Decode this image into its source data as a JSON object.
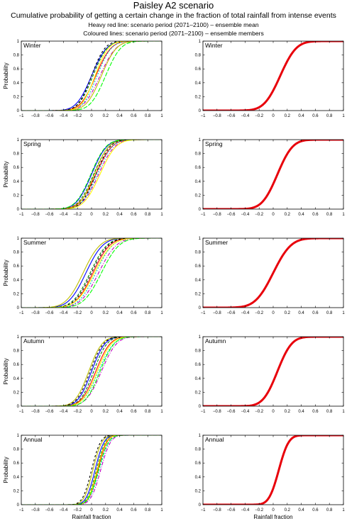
{
  "title": "Paisley A2 scenario",
  "subtitle": "Cumulative probability of getting a certain change in the fraction of total rainfall from intense events",
  "legend_lines": [
    "Heavy red line: scenario period (2071–2100) – ensemble mean",
    "Coloured lines: scenario period (2071–2100) – ensemble members"
  ],
  "colors": {
    "mean": "#e8000b",
    "members": [
      "#0000ff",
      "#007f00",
      "#ff0000",
      "#00bfbf",
      "#bf00bf",
      "#bfbf00",
      "#000000",
      "#ffff00",
      "#00ff00",
      "#ff00ff",
      "#7f007f"
    ]
  },
  "chart_data": [
    {
      "type": "line",
      "season": "Winter",
      "panel": "ensemble members",
      "ylabel": "Probability",
      "xlabel": "",
      "xlim": [
        -1,
        1
      ],
      "ylim": [
        0,
        1
      ],
      "xticks": [
        -1,
        -0.8,
        -0.6,
        -0.4,
        -0.2,
        0,
        0.2,
        0.4,
        0.6,
        0.8,
        1
      ],
      "yticks": [
        0,
        0.2,
        0.4,
        0.6,
        0.8,
        1
      ],
      "members": [
        {
          "median": 0.0,
          "spread": 0.17
        },
        {
          "median": 0.02,
          "spread": 0.16
        },
        {
          "median": 0.06,
          "spread": 0.17
        },
        {
          "median": 0.08,
          "spread": 0.16
        },
        {
          "median": 0.12,
          "spread": 0.18
        },
        {
          "median": 0.14,
          "spread": 0.17
        },
        {
          "median": 0.0,
          "spread": 0.15
        },
        {
          "median": 0.05,
          "spread": 0.15
        },
        {
          "median": 0.2,
          "spread": 0.17
        }
      ]
    },
    {
      "type": "line",
      "season": "Winter",
      "panel": "ensemble mean",
      "ylabel": "",
      "xlabel": "",
      "xlim": [
        -1,
        1
      ],
      "ylim": [
        0,
        1
      ],
      "xticks": [
        -1,
        -0.8,
        -0.6,
        -0.4,
        -0.2,
        0,
        0.2,
        0.4,
        0.6,
        0.8,
        1
      ],
      "yticks": [
        0,
        0.2,
        0.4,
        0.6,
        0.8,
        1
      ],
      "mean": {
        "median": 0.1,
        "spread": 0.18
      }
    },
    {
      "type": "line",
      "season": "Spring",
      "panel": "ensemble members",
      "ylabel": "Probability",
      "xlabel": "",
      "xlim": [
        -1,
        1
      ],
      "ylim": [
        0,
        1
      ],
      "xticks": [
        -1,
        -0.8,
        -0.6,
        -0.4,
        -0.2,
        0,
        0.2,
        0.4,
        0.6,
        0.8,
        1
      ],
      "yticks": [
        0,
        0.2,
        0.4,
        0.6,
        0.8,
        1
      ],
      "members": [
        {
          "median": 0.0,
          "spread": 0.17
        },
        {
          "median": 0.03,
          "spread": 0.17
        },
        {
          "median": 0.06,
          "spread": 0.18
        },
        {
          "median": 0.08,
          "spread": 0.17
        },
        {
          "median": 0.1,
          "spread": 0.18
        },
        {
          "median": 0.04,
          "spread": 0.16
        },
        {
          "median": 0.06,
          "spread": 0.16
        },
        {
          "median": 0.12,
          "spread": 0.18
        },
        {
          "median": -0.01,
          "spread": 0.17
        }
      ]
    },
    {
      "type": "line",
      "season": "Spring",
      "panel": "ensemble mean",
      "ylabel": "",
      "xlabel": "",
      "xlim": [
        -1,
        1
      ],
      "ylim": [
        0,
        1
      ],
      "xticks": [
        -1,
        -0.8,
        -0.6,
        -0.4,
        -0.2,
        0,
        0.2,
        0.4,
        0.6,
        0.8,
        1
      ],
      "yticks": [
        0,
        0.2,
        0.4,
        0.6,
        0.8,
        1
      ],
      "mean": {
        "median": 0.06,
        "spread": 0.17
      }
    },
    {
      "type": "line",
      "season": "Summer",
      "panel": "ensemble members",
      "ylabel": "Probability",
      "xlabel": "",
      "xlim": [
        -1,
        1
      ],
      "ylim": [
        0,
        1
      ],
      "xticks": [
        -1,
        -0.8,
        -0.6,
        -0.4,
        -0.2,
        0,
        0.2,
        0.4,
        0.6,
        0.8,
        1
      ],
      "yticks": [
        0,
        0.2,
        0.4,
        0.6,
        0.8,
        1
      ],
      "members": [
        {
          "median": -0.08,
          "spread": 0.19
        },
        {
          "median": -0.02,
          "spread": 0.19
        },
        {
          "median": 0.02,
          "spread": 0.19
        },
        {
          "median": 0.06,
          "spread": 0.19
        },
        {
          "median": 0.1,
          "spread": 0.2
        },
        {
          "median": -0.12,
          "spread": 0.19
        },
        {
          "median": 0.0,
          "spread": 0.19
        },
        {
          "median": 0.04,
          "spread": 0.2
        },
        {
          "median": 0.14,
          "spread": 0.2
        }
      ]
    },
    {
      "type": "line",
      "season": "Summer",
      "panel": "ensemble mean",
      "ylabel": "",
      "xlabel": "",
      "xlim": [
        -1,
        1
      ],
      "ylim": [
        0,
        1
      ],
      "xticks": [
        -1,
        -0.8,
        -0.6,
        -0.4,
        -0.2,
        0,
        0.2,
        0.4,
        0.6,
        0.8,
        1
      ],
      "yticks": [
        0,
        0.2,
        0.4,
        0.6,
        0.8,
        1
      ],
      "mean": {
        "median": 0.0,
        "spread": 0.2
      }
    },
    {
      "type": "line",
      "season": "Autumn",
      "panel": "ensemble members",
      "ylabel": "Probability",
      "xlabel": "",
      "xlim": [
        -1,
        1
      ],
      "ylim": [
        0,
        1
      ],
      "xticks": [
        -1,
        -0.8,
        -0.6,
        -0.4,
        -0.2,
        0,
        0.2,
        0.4,
        0.6,
        0.8,
        1
      ],
      "yticks": [
        0,
        0.2,
        0.4,
        0.6,
        0.8,
        1
      ],
      "members": [
        {
          "median": 0.0,
          "spread": 0.15
        },
        {
          "median": 0.03,
          "spread": 0.15
        },
        {
          "median": 0.06,
          "spread": 0.16
        },
        {
          "median": 0.1,
          "spread": 0.17
        },
        {
          "median": 0.14,
          "spread": 0.17
        },
        {
          "median": -0.04,
          "spread": 0.15
        },
        {
          "median": -0.02,
          "spread": 0.15
        },
        {
          "median": 0.08,
          "spread": 0.16
        },
        {
          "median": 0.12,
          "spread": 0.16
        }
      ]
    },
    {
      "type": "line",
      "season": "Autumn",
      "panel": "ensemble mean",
      "ylabel": "",
      "xlabel": "",
      "xlim": [
        -1,
        1
      ],
      "ylim": [
        0,
        1
      ],
      "xticks": [
        -1,
        -0.8,
        -0.6,
        -0.4,
        -0.2,
        0,
        0.2,
        0.4,
        0.6,
        0.8,
        1
      ],
      "yticks": [
        0,
        0.2,
        0.4,
        0.6,
        0.8,
        1
      ],
      "mean": {
        "median": 0.06,
        "spread": 0.16
      }
    },
    {
      "type": "line",
      "season": "Annual",
      "panel": "ensemble members",
      "ylabel": "Probability",
      "xlabel": "Rainfall fraction",
      "xlim": [
        -1,
        1
      ],
      "ylim": [
        0,
        1
      ],
      "xticks": [
        -1,
        -0.8,
        -0.6,
        -0.4,
        -0.2,
        0,
        0.2,
        0.4,
        0.6,
        0.8,
        1
      ],
      "yticks": [
        0,
        0.2,
        0.4,
        0.6,
        0.8,
        1
      ],
      "members": [
        {
          "median": 0.05,
          "spread": 0.1
        },
        {
          "median": 0.07,
          "spread": 0.1
        },
        {
          "median": 0.09,
          "spread": 0.1
        },
        {
          "median": 0.11,
          "spread": 0.11
        },
        {
          "median": 0.13,
          "spread": 0.11
        },
        {
          "median": 0.02,
          "spread": 0.1
        },
        {
          "median": 0.0,
          "spread": 0.1
        },
        {
          "median": 0.08,
          "spread": 0.1
        },
        {
          "median": 0.1,
          "spread": 0.11
        }
      ]
    },
    {
      "type": "line",
      "season": "Annual",
      "panel": "ensemble mean",
      "ylabel": "",
      "xlabel": "Rainfall fraction",
      "xlim": [
        -1,
        1
      ],
      "ylim": [
        0,
        1
      ],
      "xticks": [
        -1,
        -0.8,
        -0.6,
        -0.4,
        -0.2,
        0,
        0.2,
        0.4,
        0.6,
        0.8,
        1
      ],
      "yticks": [
        0,
        0.2,
        0.4,
        0.6,
        0.8,
        1
      ],
      "mean": {
        "median": 0.08,
        "spread": 0.11
      }
    }
  ]
}
